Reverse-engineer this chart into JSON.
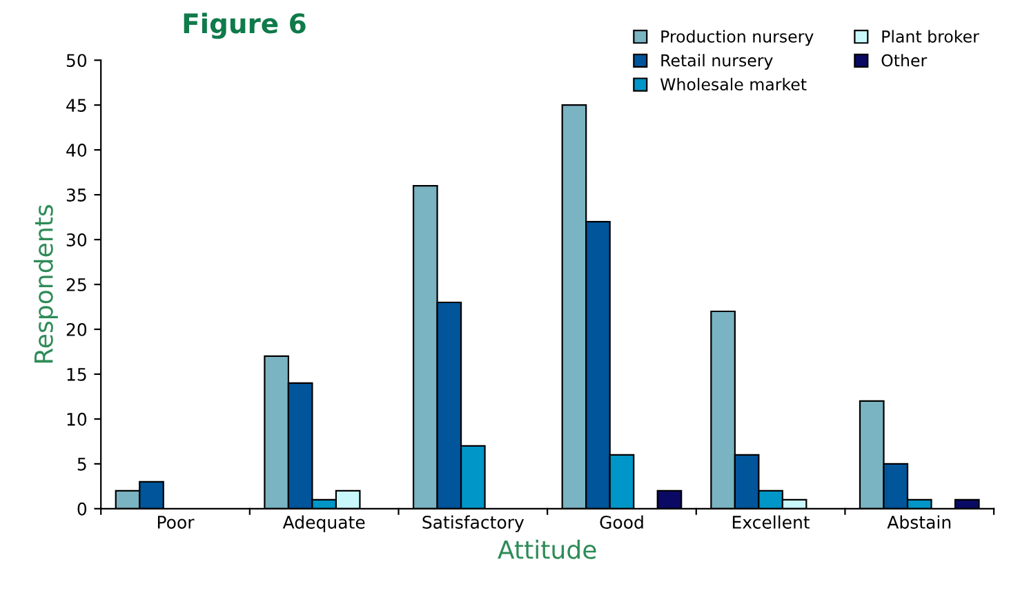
{
  "chart_data": {
    "type": "bar",
    "title": "Figure 6",
    "xlabel": "Attitude",
    "ylabel": "Respondents",
    "categories": [
      "Poor",
      "Adequate",
      "Satisfactory",
      "Good",
      "Excellent",
      "Abstain"
    ],
    "series": [
      {
        "name": "Production nursery",
        "color": "#7ab3c2",
        "values": [
          2,
          17,
          36,
          45,
          22,
          12
        ]
      },
      {
        "name": "Retail nursery",
        "color": "#00559b",
        "values": [
          3,
          14,
          23,
          32,
          6,
          5
        ]
      },
      {
        "name": "Wholesale market",
        "color": "#0096c8",
        "values": [
          0,
          1,
          7,
          6,
          2,
          1
        ]
      },
      {
        "name": "Plant broker",
        "color": "#c8f8fa",
        "values": [
          0,
          2,
          0,
          0,
          1,
          0
        ]
      },
      {
        "name": "Other",
        "color": "#0a0a64",
        "values": [
          0,
          0,
          0,
          2,
          0,
          1
        ]
      }
    ],
    "ylim": [
      0,
      50
    ],
    "yticks": [
      0,
      5,
      10,
      15,
      20,
      25,
      30,
      35,
      40,
      45,
      50
    ],
    "grid": false,
    "legend": "top right"
  }
}
